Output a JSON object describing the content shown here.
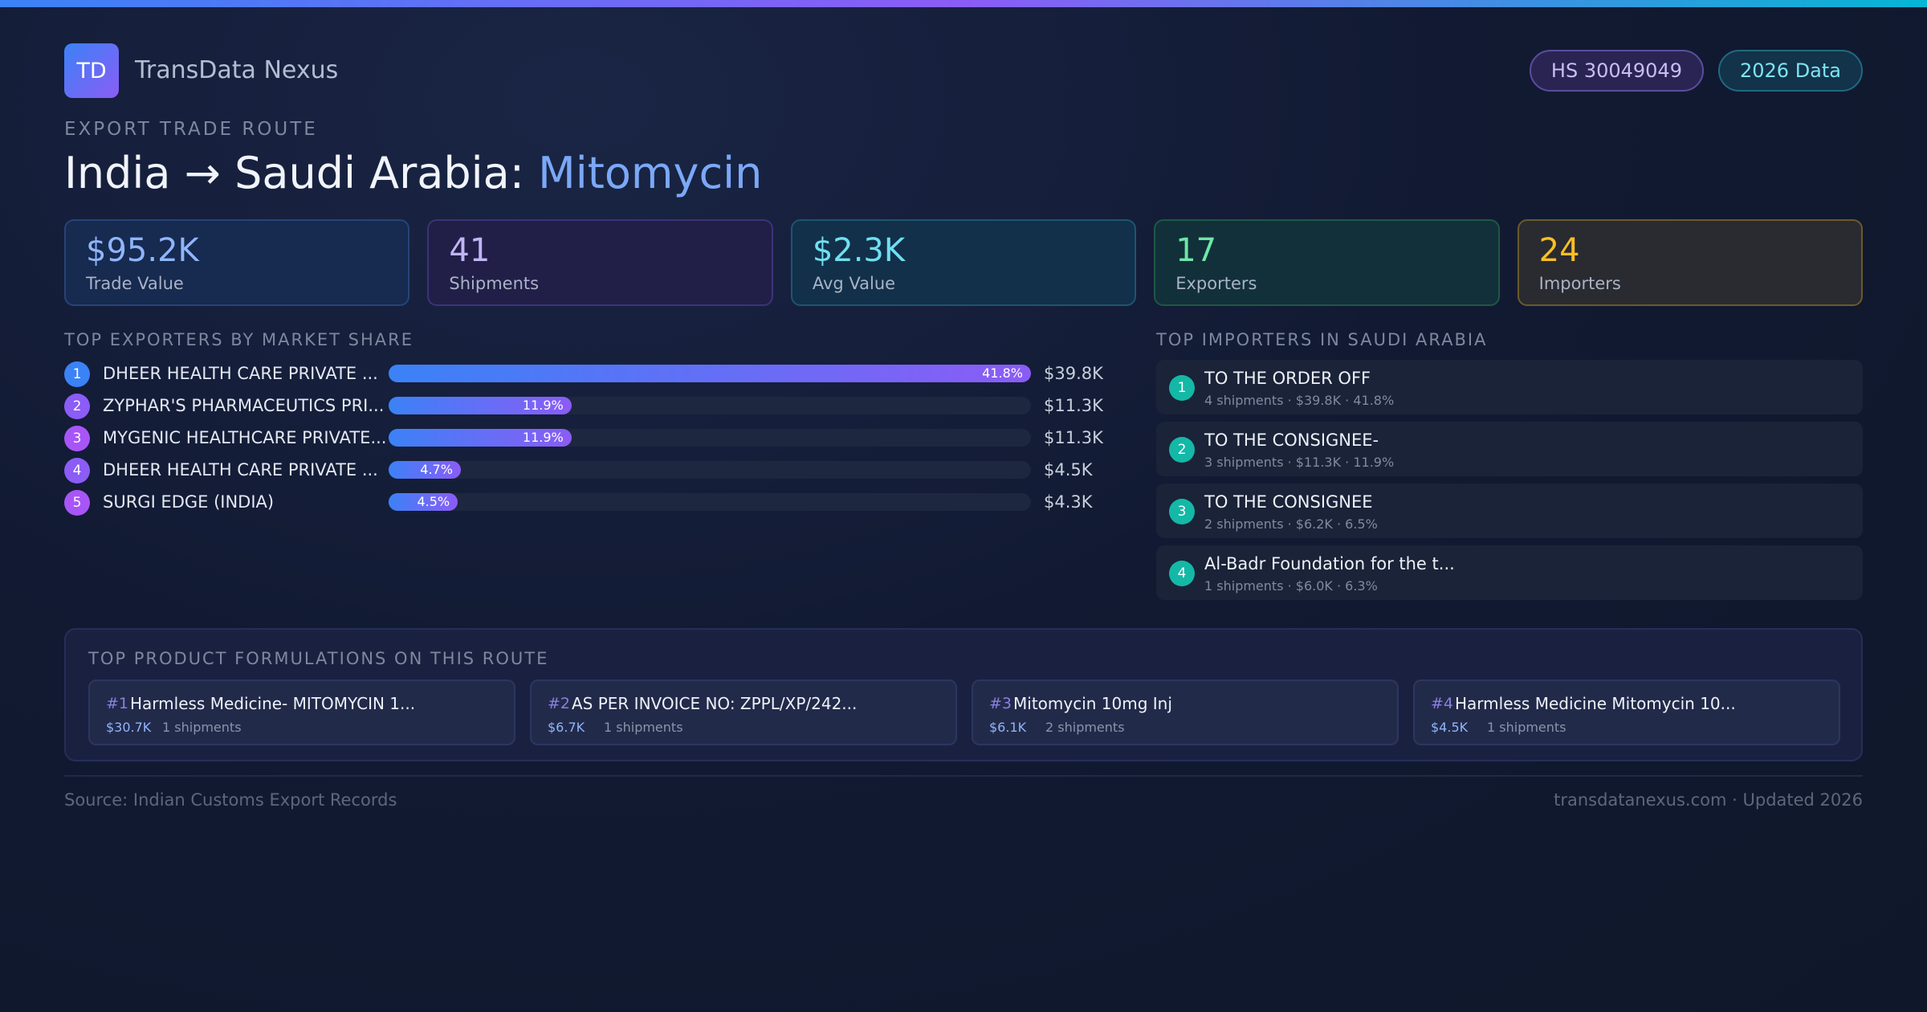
{
  "brand": {
    "logo_text": "TD",
    "name": "TransData Nexus"
  },
  "badges": {
    "hs_code": "HS 30049049",
    "year": "2026 Data"
  },
  "route": {
    "eyebrow": "EXPORT TRADE ROUTE",
    "title_main": "India → Saudi Arabia: ",
    "title_product": "Mitomycin"
  },
  "stats": [
    {
      "value": "$95.2K",
      "label": "Trade Value"
    },
    {
      "value": "41",
      "label": "Shipments"
    },
    {
      "value": "$2.3K",
      "label": "Avg Value"
    },
    {
      "value": "17",
      "label": "Exporters"
    },
    {
      "value": "24",
      "label": "Importers"
    }
  ],
  "exporters": {
    "heading": "TOP EXPORTERS BY MARKET SHARE",
    "rank_colors": [
      "#3b82f6",
      "#8b5cf6",
      "#a855f7",
      "#8b5cf6",
      "#a855f7"
    ],
    "items": [
      {
        "rank": "1",
        "name": "DHEER HEALTH CARE PRIVATE ...",
        "share": 41.8,
        "share_label": "41.8%",
        "value": "$39.8K"
      },
      {
        "rank": "2",
        "name": "ZYPHAR'S PHARMACEUTICS PRI...",
        "share": 11.9,
        "share_label": "11.9%",
        "value": "$11.3K"
      },
      {
        "rank": "3",
        "name": "MYGENIC HEALTHCARE PRIVATE...",
        "share": 11.9,
        "share_label": "11.9%",
        "value": "$11.3K"
      },
      {
        "rank": "4",
        "name": "DHEER HEALTH CARE PRIVATE ...",
        "share": 4.7,
        "share_label": "4.7%",
        "value": "$4.5K"
      },
      {
        "rank": "5",
        "name": "SURGI EDGE (INDIA)",
        "share": 4.5,
        "share_label": "4.5%",
        "value": "$4.3K"
      }
    ]
  },
  "importers": {
    "heading": "TOP IMPORTERS IN SAUDI ARABIA",
    "items": [
      {
        "rank": "1",
        "name": "TO THE ORDER OFF",
        "meta": "4 shipments · $39.8K · 41.8%"
      },
      {
        "rank": "2",
        "name": "TO THE CONSIGNEE-",
        "meta": "3 shipments · $11.3K · 11.9%"
      },
      {
        "rank": "3",
        "name": "TO THE CONSIGNEE",
        "meta": "2 shipments · $6.2K · 6.5%"
      },
      {
        "rank": "4",
        "name": "Al-Badr Foundation for the t...",
        "meta": "1 shipments · $6.0K · 6.3%"
      }
    ]
  },
  "formulations": {
    "heading": "TOP PRODUCT FORMULATIONS ON THIS ROUTE",
    "items": [
      {
        "num": "#1",
        "title": "Harmless Medicine- MITOMYCIN 1...",
        "value": "$30.7K",
        "shipments": "1 shipments"
      },
      {
        "num": "#2",
        "title": "AS PER INVOICE NO: ZPPL/XP/242...",
        "value": "$6.7K",
        "shipments": "1 shipments"
      },
      {
        "num": "#3",
        "title": "Mitomycin 10mg Inj",
        "value": "$6.1K",
        "shipments": "2 shipments"
      },
      {
        "num": "#4",
        "title": "Harmless Medicine Mitomycin 10...",
        "value": "$4.5K",
        "shipments": "1 shipments"
      }
    ]
  },
  "footer": {
    "source": "Source: Indian Customs Export Records",
    "site": "transdatanexus.com · Updated 2026"
  }
}
